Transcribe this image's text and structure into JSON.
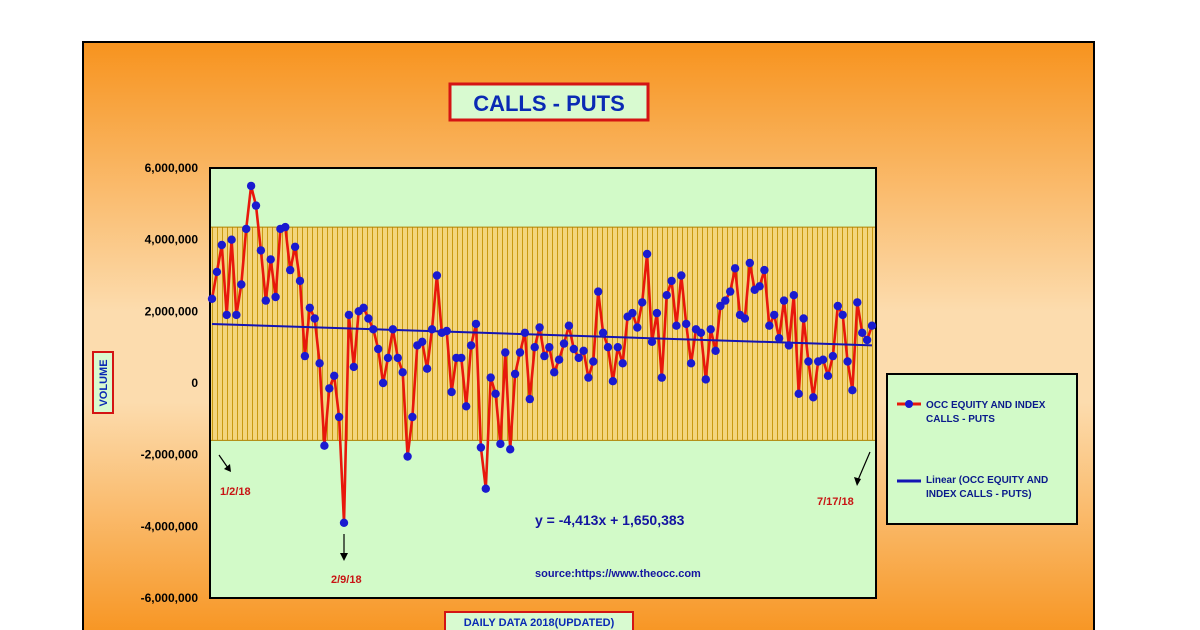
{
  "chart_data": {
    "type": "line",
    "title": "CALLS - PUTS",
    "xlabel": "DAILY DATA 2018(UPDATED)",
    "ylabel": "VOLUME",
    "ylim": [
      -6000000,
      6000000
    ],
    "y_ticks": [
      "6,000,000",
      "4,000,000",
      "2,000,000",
      "0",
      "-2,000,000",
      "-4,000,000",
      "-6,000,000"
    ],
    "y_tick_values": [
      6000000,
      4000000,
      2000000,
      0,
      -2000000,
      -4000000,
      -6000000
    ],
    "band": [
      -1600000,
      4350000
    ],
    "series": [
      {
        "name": "OCC EQUITY AND INDEX CALLS - PUTS",
        "color": "#e8180c",
        "marker_color": "#1a1ad0",
        "values": [
          2350000,
          3100000,
          3850000,
          1900000,
          4000000,
          1900000,
          2750000,
          4300000,
          5500000,
          4950000,
          3700000,
          2300000,
          3450000,
          2400000,
          4300000,
          4350000,
          3150000,
          3800000,
          2850000,
          750000,
          2100000,
          1800000,
          550000,
          -1750000,
          -150000,
          200000,
          -950000,
          -3900000,
          1900000,
          450000,
          2000000,
          2100000,
          1800000,
          1500000,
          950000,
          0,
          700000,
          1500000,
          700000,
          300000,
          -2050000,
          -950000,
          1050000,
          1150000,
          400000,
          1500000,
          3000000,
          1400000,
          1450000,
          -250000,
          700000,
          700000,
          -650000,
          1050000,
          1650000,
          -1800000,
          -2950000,
          150000,
          -300000,
          -1700000,
          850000,
          -1850000,
          250000,
          850000,
          1400000,
          -450000,
          1000000,
          1550000,
          750000,
          1000000,
          300000,
          650000,
          1100000,
          1600000,
          950000,
          700000,
          900000,
          150000,
          600000,
          2550000,
          1400000,
          1000000,
          50000,
          1000000,
          550000,
          1850000,
          1950000,
          1550000,
          2250000,
          3600000,
          1150000,
          1950000,
          150000,
          2450000,
          2850000,
          1600000,
          3000000,
          1650000,
          550000,
          1500000,
          1400000,
          100000,
          1500000,
          900000,
          2150000,
          2300000,
          2550000,
          3200000,
          1900000,
          1800000,
          3350000,
          2600000,
          2700000,
          3150000,
          1600000,
          1900000,
          1250000,
          2300000,
          1050000,
          2450000,
          -300000,
          1800000,
          600000,
          -400000,
          600000,
          650000,
          200000,
          750000,
          2150000,
          1900000,
          600000,
          -200000,
          2250000,
          1400000,
          1200000,
          1600000
        ]
      },
      {
        "name": "Linear (OCC EQUITY AND INDEX CALLS - PUTS)",
        "color": "#1414b4",
        "type": "trendline",
        "slope": -4413,
        "intercept": 1650383
      }
    ],
    "legend_position": "right",
    "legend": [
      {
        "label_line1": "OCC EQUITY AND INDEX",
        "label_line2": "CALLS - PUTS"
      },
      {
        "label_line1": "Linear (OCC EQUITY AND",
        "label_line2": "INDEX CALLS - PUTS)"
      }
    ],
    "annotations": {
      "equation": "y = -4,413x + 1,650,383",
      "source": "source:https://www.theocc.com",
      "start_date": "1/2/18",
      "low_date": "2/9/18",
      "end_date": "7/17/18"
    },
    "colors": {
      "bg_top": "#f7931e",
      "bg_mid": "#fbd9a6",
      "bg_bottom": "#f7931e",
      "plot_bg": "#d2fac8",
      "band": "#f0d27c",
      "band_line": "#c89600",
      "accent_red": "#d41414",
      "title_fill": "#d8fad0",
      "title_text": "#0a2ab4"
    }
  }
}
